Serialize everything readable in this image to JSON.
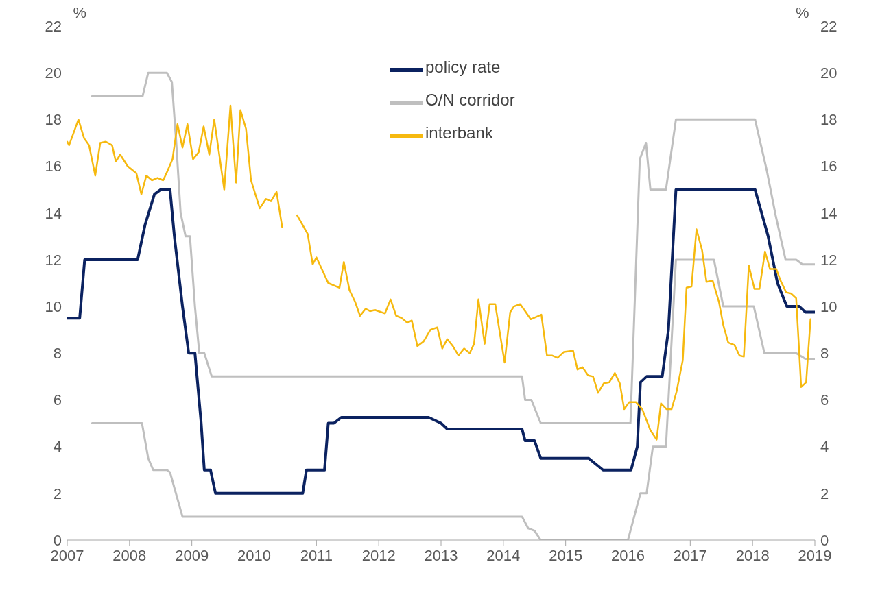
{
  "chart_data": {
    "type": "line",
    "ylabel": "%",
    "y2label": "%",
    "xlim": [
      2007,
      2019
    ],
    "xticks": [
      2007,
      2008,
      2009,
      2010,
      2011,
      2012,
      2013,
      2014,
      2015,
      2016,
      2017,
      2018,
      2019
    ],
    "ylim": [
      0,
      22
    ],
    "yticks": [
      0,
      2,
      4,
      6,
      8,
      10,
      12,
      14,
      16,
      18,
      20,
      22
    ],
    "y2lim": [
      0,
      22
    ],
    "y2ticks": [
      0,
      2,
      4,
      6,
      8,
      10,
      12,
      14,
      16,
      18,
      20,
      22
    ],
    "grid": false,
    "legend": "top",
    "marker": "none",
    "line_style": "solid",
    "series": [
      {
        "name": "policy rate",
        "color": "#0b2260",
        "x": [
          2007.0,
          2007.2,
          2007.28,
          2008.13,
          2008.25,
          2008.4,
          2008.5,
          2008.65,
          2008.72,
          2008.85,
          2008.95,
          2009.05,
          2009.15,
          2009.2,
          2009.3,
          2009.38,
          2010.78,
          2010.84,
          2011.13,
          2011.19,
          2011.28,
          2011.4,
          2012.8,
          2013.0,
          2013.1,
          2014.3,
          2014.35,
          2014.5,
          2014.6,
          2015.37,
          2015.6,
          2016.05,
          2016.15,
          2016.2,
          2016.3,
          2016.55,
          2016.65,
          2016.77,
          2018.04,
          2018.25,
          2018.4,
          2018.55,
          2018.75,
          2018.85,
          2019.0
        ],
        "values": [
          9.5,
          9.5,
          12,
          12,
          13.5,
          14.8,
          15,
          15,
          13,
          10,
          8,
          8,
          5,
          3,
          3,
          2,
          2,
          3,
          3,
          5,
          5,
          5.25,
          5.25,
          5,
          4.75,
          4.75,
          4.25,
          4.25,
          3.5,
          3.5,
          3,
          3,
          4,
          6.75,
          7,
          7,
          9,
          15,
          15,
          13,
          11,
          10,
          10,
          9.75,
          9.75
        ]
      },
      {
        "name": "O/N corridor",
        "color": "#bfbfbf",
        "x": [
          2007.4,
          2008.21,
          2008.3,
          2008.6,
          2008.68,
          2008.75,
          2008.82,
          2008.9,
          2008.97,
          2009.05,
          2009.12,
          2009.2,
          2009.32,
          2014.3,
          2014.35,
          2014.45,
          2014.6,
          2016.04,
          2016.19,
          2016.29,
          2016.36,
          2016.61,
          2016.77,
          2018.04,
          2018.23,
          2018.37,
          2018.53,
          2018.7,
          2018.8,
          2019.0
        ],
        "values": [
          19,
          19,
          20,
          20,
          19.6,
          17,
          14,
          13,
          13,
          10,
          8,
          8,
          7,
          7,
          6,
          6,
          5,
          5,
          16.3,
          17,
          15,
          15,
          18,
          18,
          15.8,
          13.9,
          12,
          12,
          11.8,
          11.8
        ]
      },
      {
        "color": "#bfbfbf",
        "x": [
          2007.4,
          2008.2,
          2008.3,
          2008.38,
          2008.6,
          2008.65,
          2008.85,
          2014.3,
          2014.4,
          2014.5,
          2014.6,
          2016.0,
          2016.2,
          2016.3,
          2016.4,
          2016.61,
          2016.77,
          2017.38,
          2017.53,
          2018.02,
          2018.19,
          2018.7,
          2018.85,
          2019.0
        ],
        "values": [
          5,
          5,
          3.5,
          3,
          3,
          2.9,
          1,
          1,
          0.5,
          0.4,
          0,
          0,
          2,
          2,
          4,
          4,
          12,
          12,
          10,
          10,
          8,
          8,
          7.75,
          7.75
        ]
      },
      {
        "name": "interbank",
        "color": "#f6b90f",
        "x": [
          2007.0,
          2007.03,
          2007.18,
          2007.27,
          2007.35,
          2007.45,
          2007.53,
          2007.62,
          2007.72,
          2007.78,
          2007.85,
          2007.97,
          2008.11,
          2008.19,
          2008.27,
          2008.36,
          2008.45,
          2008.54,
          2008.61,
          2008.69,
          2008.77,
          2008.85,
          2008.93,
          2009.02,
          2009.11,
          2009.19,
          2009.28,
          2009.36,
          2009.52,
          2009.62,
          2009.71,
          2009.78,
          2009.87,
          2009.95,
          2010.09,
          2010.19,
          2010.27,
          2010.36,
          2010.45,
          2010.57,
          2010.69,
          2010.86,
          2010.94,
          2011.0,
          2011.19,
          2011.37,
          2011.44,
          2011.53,
          2011.62,
          2011.7,
          2011.79,
          2011.86,
          2011.94,
          2012.1,
          2012.19,
          2012.28,
          2012.37,
          2012.46,
          2012.53,
          2012.62,
          2012.72,
          2012.83,
          2012.94,
          2013.02,
          2013.1,
          2013.19,
          2013.28,
          2013.37,
          2013.46,
          2013.53,
          2013.6,
          2013.7,
          2013.78,
          2013.87,
          2014.02,
          2014.11,
          2014.17,
          2014.27,
          2014.35,
          2014.44,
          2014.61,
          2014.7,
          2014.78,
          2014.87,
          2014.97,
          2015.12,
          2015.19,
          2015.27,
          2015.36,
          2015.44,
          2015.52,
          2015.61,
          2015.7,
          2015.79,
          2015.87,
          2015.94,
          2016.02,
          2016.13,
          2016.23,
          2016.36,
          2016.46,
          2016.53,
          2016.62,
          2016.7,
          2016.78,
          2016.88,
          2016.94,
          2017.02,
          2017.1,
          2017.19,
          2017.26,
          2017.36,
          2017.46,
          2017.53,
          2017.61,
          2017.71,
          2017.79,
          2017.86,
          2017.94,
          2018.03,
          2018.11,
          2018.2,
          2018.28,
          2018.38,
          2018.45,
          2018.54,
          2018.62,
          2018.7,
          2018.78,
          2018.86,
          2018.93
        ],
        "values": [
          17.05,
          16.9,
          18.0,
          17.2,
          16.9,
          15.6,
          17.0,
          17.05,
          16.9,
          16.2,
          16.5,
          16.0,
          15.7,
          14.8,
          15.6,
          15.4,
          15.5,
          15.4,
          15.8,
          16.3,
          17.8,
          16.8,
          17.8,
          16.3,
          16.6,
          17.7,
          16.5,
          18.0,
          15.0,
          18.6,
          15.3,
          18.4,
          17.6,
          15.4,
          14.2,
          14.6,
          14.5,
          14.9,
          13.4,
          null,
          13.9,
          13.1,
          11.8,
          12.1,
          11.0,
          10.8,
          11.9,
          10.7,
          10.2,
          9.6,
          9.9,
          9.8,
          9.85,
          9.7,
          10.3,
          9.6,
          9.5,
          9.3,
          9.4,
          8.3,
          8.5,
          9.0,
          9.1,
          8.2,
          8.6,
          8.3,
          7.9,
          8.2,
          8.0,
          8.4,
          10.3,
          8.4,
          10.1,
          10.1,
          7.6,
          9.75,
          10.0,
          10.1,
          9.8,
          9.45,
          9.65,
          7.9,
          7.9,
          7.8,
          8.05,
          8.1,
          7.3,
          7.4,
          7.05,
          7.0,
          6.3,
          6.7,
          6.75,
          7.15,
          6.7,
          5.6,
          5.9,
          5.9,
          5.6,
          4.7,
          4.3,
          5.85,
          5.6,
          5.6,
          6.35,
          7.7,
          10.8,
          10.85,
          13.3,
          12.4,
          11.05,
          11.1,
          10.2,
          9.2,
          8.45,
          8.35,
          7.9,
          7.85,
          11.75,
          10.75,
          10.75,
          12.35,
          11.6,
          11.6,
          11.1,
          10.6,
          10.55,
          10.35,
          6.55,
          6.75,
          9.45
        ]
      }
    ]
  }
}
